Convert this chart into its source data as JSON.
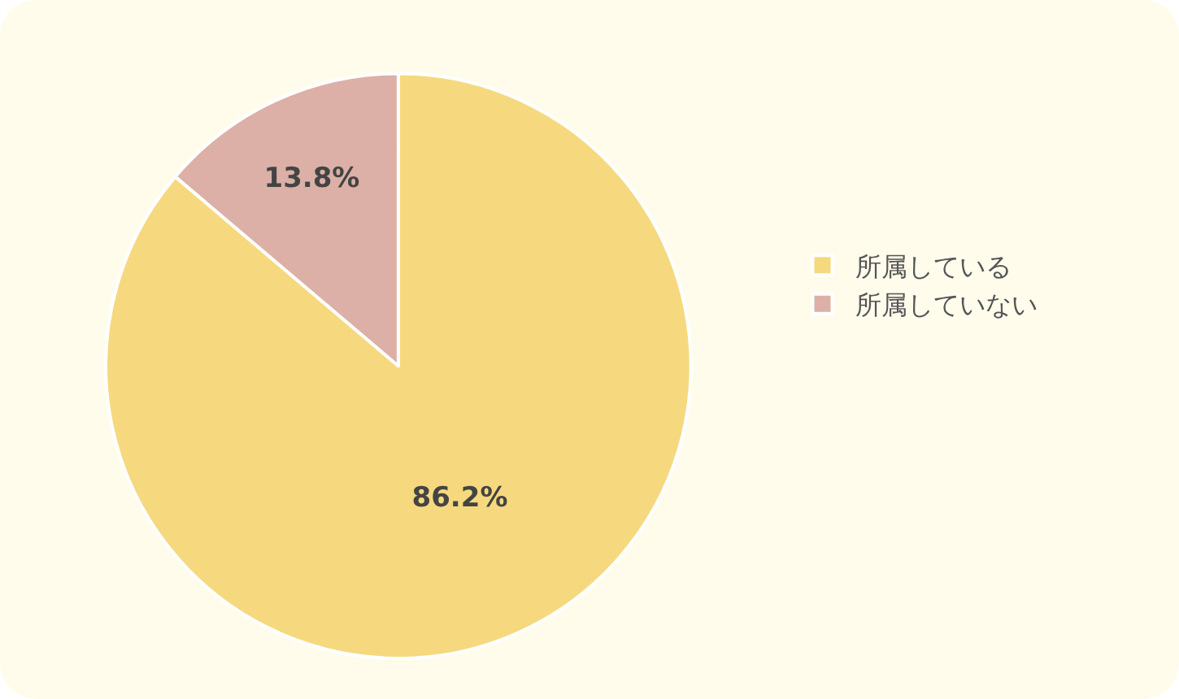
{
  "chart_data": {
    "type": "pie",
    "categories": [
      "所属している",
      "所属していない"
    ],
    "values": [
      86.2,
      13.8
    ],
    "colors": [
      "#f6d97e",
      "#dcb0a6"
    ],
    "value_labels": [
      "86.2%",
      "13.8%"
    ],
    "legend": "right"
  }
}
